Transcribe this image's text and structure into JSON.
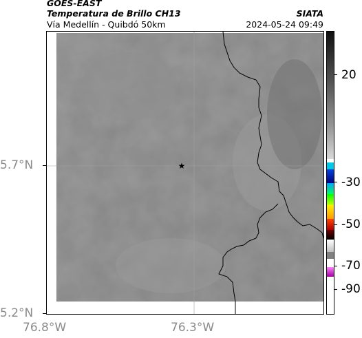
{
  "header": {
    "satellite": "GOES-EAST",
    "product": "Temperatura de Brillo CH13",
    "route": "Vía Medellín - Quibdó 50km",
    "agency": "SIATA",
    "timestamp": "2024-05-24 09:49"
  },
  "map": {
    "lat_labels": [
      "5.7°N",
      "5.2°N"
    ],
    "lon_labels": [
      "76.8°W",
      "76.3°W"
    ],
    "marker": "star-marker",
    "gridlines": true
  },
  "colorbar": {
    "labels": [
      "20",
      "-30",
      "-50",
      "-70",
      "-90"
    ]
  },
  "colors": {
    "background_gray": "#858585",
    "border_line": "#000000",
    "grid_line": "#a0a0a0",
    "axis_label": "#8a8a8a"
  }
}
